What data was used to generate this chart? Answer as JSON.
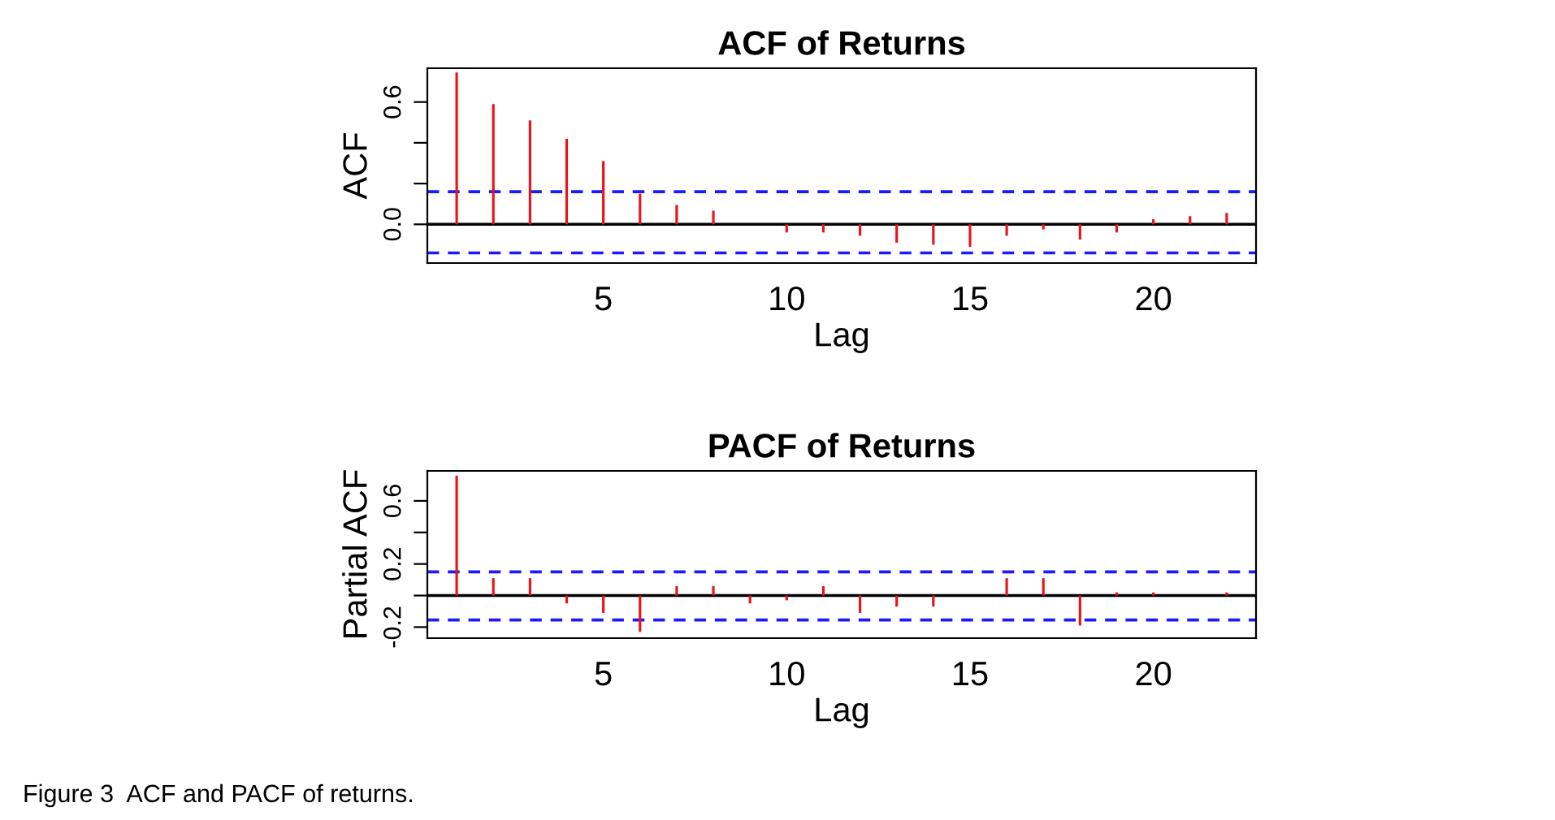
{
  "chart_data": [
    {
      "type": "bar",
      "title": "ACF of Returns",
      "xlabel": "Lag",
      "ylabel": "ACF",
      "color": "#e8141c",
      "x": [
        1,
        2,
        3,
        4,
        5,
        6,
        7,
        8,
        9,
        10,
        11,
        12,
        13,
        14,
        15,
        16,
        17,
        18,
        19,
        20,
        21,
        22
      ],
      "values": [
        0.745,
        0.59,
        0.51,
        0.42,
        0.31,
        0.15,
        0.095,
        0.067,
        0,
        -0.04,
        -0.04,
        -0.056,
        -0.09,
        -0.1,
        -0.11,
        -0.056,
        -0.025,
        -0.075,
        -0.04,
        0.025,
        0.04,
        0.056
      ],
      "xlim": [
        0.2,
        22.8
      ],
      "xticks": [
        5,
        10,
        15,
        20
      ],
      "ylim": [
        -0.19,
        0.766
      ],
      "yticks": [
        {
          "value": 0.0,
          "label": "0.0"
        },
        {
          "value": 0.2,
          "label": null
        },
        {
          "value": 0.4,
          "label": null
        },
        {
          "value": 0.6,
          "label": "0.6"
        }
      ],
      "ref_lines": [
        {
          "axis": "y",
          "value": 0,
          "color": "#000000",
          "line_style": "solid"
        },
        {
          "axis": "y",
          "value": 0.16,
          "color": "#1a1aff",
          "line_style": "dashed"
        },
        {
          "axis": "y",
          "value": -0.14,
          "color": "#1a1aff",
          "line_style": "dashed"
        }
      ]
    },
    {
      "type": "bar",
      "title": "PACF of Returns",
      "xlabel": "Lag",
      "ylabel": "Partial ACF",
      "color": "#e8141c",
      "x": [
        1,
        2,
        3,
        4,
        5,
        6,
        7,
        8,
        9,
        10,
        11,
        12,
        13,
        14,
        15,
        16,
        17,
        18,
        19,
        20,
        21,
        22
      ],
      "values": [
        0.76,
        0.11,
        0.11,
        -0.05,
        -0.11,
        -0.23,
        0.06,
        0.06,
        -0.05,
        -0.03,
        0.06,
        -0.11,
        -0.07,
        -0.07,
        0,
        0.11,
        0.11,
        -0.19,
        0.02,
        0.02,
        0,
        0.02
      ],
      "xlim": [
        0.2,
        22.8
      ],
      "xticks": [
        5,
        10,
        15,
        20
      ],
      "ylim": [
        -0.27,
        0.79
      ],
      "yticks": [
        {
          "value": -0.2,
          "label": "-0.2"
        },
        {
          "value": 0.0,
          "label": null
        },
        {
          "value": 0.2,
          "label": "0.2"
        },
        {
          "value": 0.4,
          "label": null
        },
        {
          "value": 0.6,
          "label": "0.6"
        }
      ],
      "ref_lines": [
        {
          "axis": "y",
          "value": 0,
          "color": "#000000",
          "line_style": "solid"
        },
        {
          "axis": "y",
          "value": 0.15,
          "color": "#1a1aff",
          "line_style": "dashed"
        },
        {
          "axis": "y",
          "value": -0.155,
          "color": "#1a1aff",
          "line_style": "dashed"
        }
      ],
      "annotations": [
        "Figure 3  ACF and PACF of returns."
      ]
    }
  ]
}
